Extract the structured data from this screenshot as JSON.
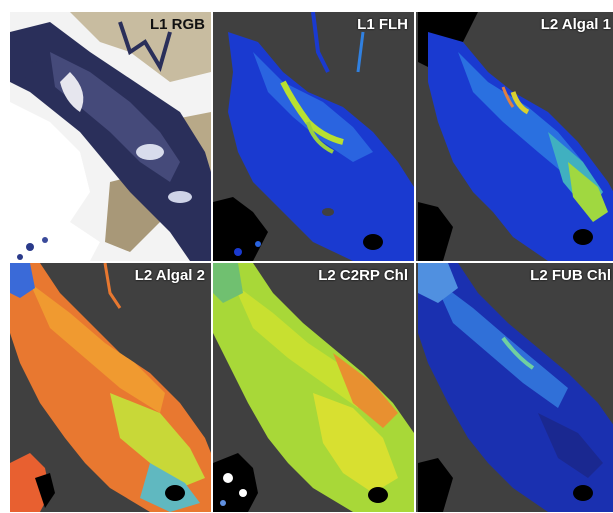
{
  "panels": [
    {
      "label": "L1 RGB",
      "kind": "rgb"
    },
    {
      "label": "L1 FLH",
      "kind": "flh"
    },
    {
      "label": "L2 Algal 1",
      "kind": "algal1"
    },
    {
      "label": "L2 Algal 2",
      "kind": "algal2"
    },
    {
      "label": "L2 C2RP Chl",
      "kind": "c2rp"
    },
    {
      "label": "L2 FUB Chl",
      "kind": "fub"
    }
  ],
  "colors": {
    "land": "#404040",
    "no_data": "#000000",
    "cloud": "#ffffff"
  }
}
